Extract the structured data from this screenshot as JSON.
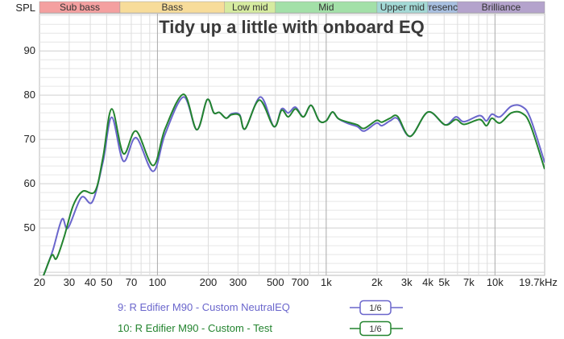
{
  "chart_data": {
    "type": "line",
    "title": "Tidy up a little with onboard EQ",
    "ylabel": "SPL",
    "xlabel": "",
    "xscale": "log",
    "xlim": [
      20,
      19700
    ],
    "ylim": [
      39.3,
      98.4
    ],
    "grid": true,
    "y_ticks": [
      50,
      60,
      70,
      80,
      90
    ],
    "x_ticks": [
      {
        "v": 20,
        "label": "20"
      },
      {
        "v": 30,
        "label": "30"
      },
      {
        "v": 40,
        "label": "40"
      },
      {
        "v": 50,
        "label": "50"
      },
      {
        "v": 70,
        "label": "70"
      },
      {
        "v": 100,
        "label": "100"
      },
      {
        "v": 200,
        "label": "200"
      },
      {
        "v": 300,
        "label": "300"
      },
      {
        "v": 500,
        "label": "500"
      },
      {
        "v": 700,
        "label": "700"
      },
      {
        "v": 1000,
        "label": "1k"
      },
      {
        "v": 2000,
        "label": "2k"
      },
      {
        "v": 3000,
        "label": "3k"
      },
      {
        "v": 4000,
        "label": "4k"
      },
      {
        "v": 5000,
        "label": "5k"
      },
      {
        "v": 7000,
        "label": "7k"
      },
      {
        "v": 10000,
        "label": "10k"
      },
      {
        "v": 19700,
        "label": "19.7kHz"
      }
    ],
    "bands": [
      {
        "label": "Sub bass",
        "from": 20,
        "to": 60,
        "color": "#f4a0a0"
      },
      {
        "label": "Bass",
        "from": 60,
        "to": 250,
        "color": "#f7dc9a"
      },
      {
        "label": "Low mid",
        "from": 250,
        "to": 500,
        "color": "#d6eba0"
      },
      {
        "label": "Mid",
        "from": 500,
        "to": 2000,
        "color": "#a3e0a8"
      },
      {
        "label": "Upper mid",
        "from": 2000,
        "to": 4000,
        "color": "#a3d9d6"
      },
      {
        "label": "Presence",
        "from": 4000,
        "to": 6000,
        "color": "#a8bfe0"
      },
      {
        "label": "Brilliance",
        "from": 6000,
        "to": 19700,
        "color": "#b4a3cc"
      }
    ],
    "series": [
      {
        "name": "9: R Edifier M90 - Custom NeutralEQ",
        "smoothing": "1/6",
        "color": "#6a66cc",
        "points": [
          [
            20,
            37
          ],
          [
            21.5,
            40
          ],
          [
            24,
            45
          ],
          [
            27.2,
            52
          ],
          [
            29.5,
            50
          ],
          [
            35.4,
            56.9
          ],
          [
            41.1,
            55.9
          ],
          [
            47.6,
            65
          ],
          [
            53.6,
            75
          ],
          [
            62.8,
            65.1
          ],
          [
            74.7,
            70.4
          ],
          [
            94.3,
            62.8
          ],
          [
            111,
            71.2
          ],
          [
            143,
            79.6
          ],
          [
            171,
            72.2
          ],
          [
            197,
            79
          ],
          [
            216,
            76
          ],
          [
            233,
            76.1
          ],
          [
            255,
            74.8
          ],
          [
            275,
            75.8
          ],
          [
            307,
            75.6
          ],
          [
            331,
            72.4
          ],
          [
            408,
            79.6
          ],
          [
            490,
            72.9
          ],
          [
            544,
            76.9
          ],
          [
            596,
            76
          ],
          [
            658,
            77.3
          ],
          [
            733,
            75.1
          ],
          [
            814,
            77.7
          ],
          [
            909,
            74.2
          ],
          [
            1000,
            74.2
          ],
          [
            1088,
            76.2
          ],
          [
            1180,
            74.7
          ],
          [
            1345,
            73.6
          ],
          [
            1530,
            72.9
          ],
          [
            1680,
            71.9
          ],
          [
            1985,
            73.7
          ],
          [
            2135,
            73.1
          ],
          [
            2390,
            74.2
          ],
          [
            2650,
            74.7
          ],
          [
            3150,
            70.7
          ],
          [
            4010,
            76.2
          ],
          [
            5060,
            73.3
          ],
          [
            5870,
            75.1
          ],
          [
            6560,
            74
          ],
          [
            8120,
            75.4
          ],
          [
            8900,
            74.2
          ],
          [
            9590,
            75.7
          ],
          [
            10700,
            75.1
          ],
          [
            12500,
            77.5
          ],
          [
            14500,
            77.4
          ],
          [
            16200,
            74.8
          ],
          [
            19700,
            64.8
          ]
        ]
      },
      {
        "name": "10: R Edifier M90 - Custom - Test",
        "smoothing": "1/6",
        "color": "#23842f",
        "points": [
          [
            20,
            37
          ],
          [
            21.5,
            40
          ],
          [
            23.7,
            43.9
          ],
          [
            25.2,
            43.1
          ],
          [
            28,
            48
          ],
          [
            31.7,
            55.1
          ],
          [
            36.1,
            58.3
          ],
          [
            42.7,
            58.3
          ],
          [
            47.6,
            66
          ],
          [
            53.6,
            76.9
          ],
          [
            62.8,
            66.8
          ],
          [
            74.7,
            71.9
          ],
          [
            94.3,
            64.1
          ],
          [
            111,
            72.4
          ],
          [
            143,
            80.2
          ],
          [
            171,
            72.2
          ],
          [
            197,
            79
          ],
          [
            216,
            76
          ],
          [
            233,
            76.1
          ],
          [
            255,
            74.8
          ],
          [
            275,
            75.6
          ],
          [
            307,
            75.4
          ],
          [
            331,
            72.4
          ],
          [
            402,
            78.9
          ],
          [
            490,
            72.9
          ],
          [
            544,
            76.6
          ],
          [
            596,
            75.1
          ],
          [
            658,
            76.9
          ],
          [
            733,
            75.1
          ],
          [
            814,
            77.7
          ],
          [
            909,
            74.2
          ],
          [
            1000,
            74.2
          ],
          [
            1088,
            76.2
          ],
          [
            1180,
            74.7
          ],
          [
            1345,
            73.9
          ],
          [
            1530,
            73.3
          ],
          [
            1680,
            72.5
          ],
          [
            1985,
            74.3
          ],
          [
            2135,
            73.9
          ],
          [
            2390,
            74.8
          ],
          [
            2650,
            75.2
          ],
          [
            3150,
            70.7
          ],
          [
            4010,
            76.2
          ],
          [
            5060,
            73.3
          ],
          [
            5870,
            74.5
          ],
          [
            6560,
            73.4
          ],
          [
            8120,
            74.5
          ],
          [
            8900,
            73.1
          ],
          [
            9590,
            74.8
          ],
          [
            10700,
            73.7
          ],
          [
            12500,
            76
          ],
          [
            14500,
            75.9
          ],
          [
            16200,
            73.3
          ],
          [
            19700,
            63.3
          ]
        ]
      }
    ]
  }
}
